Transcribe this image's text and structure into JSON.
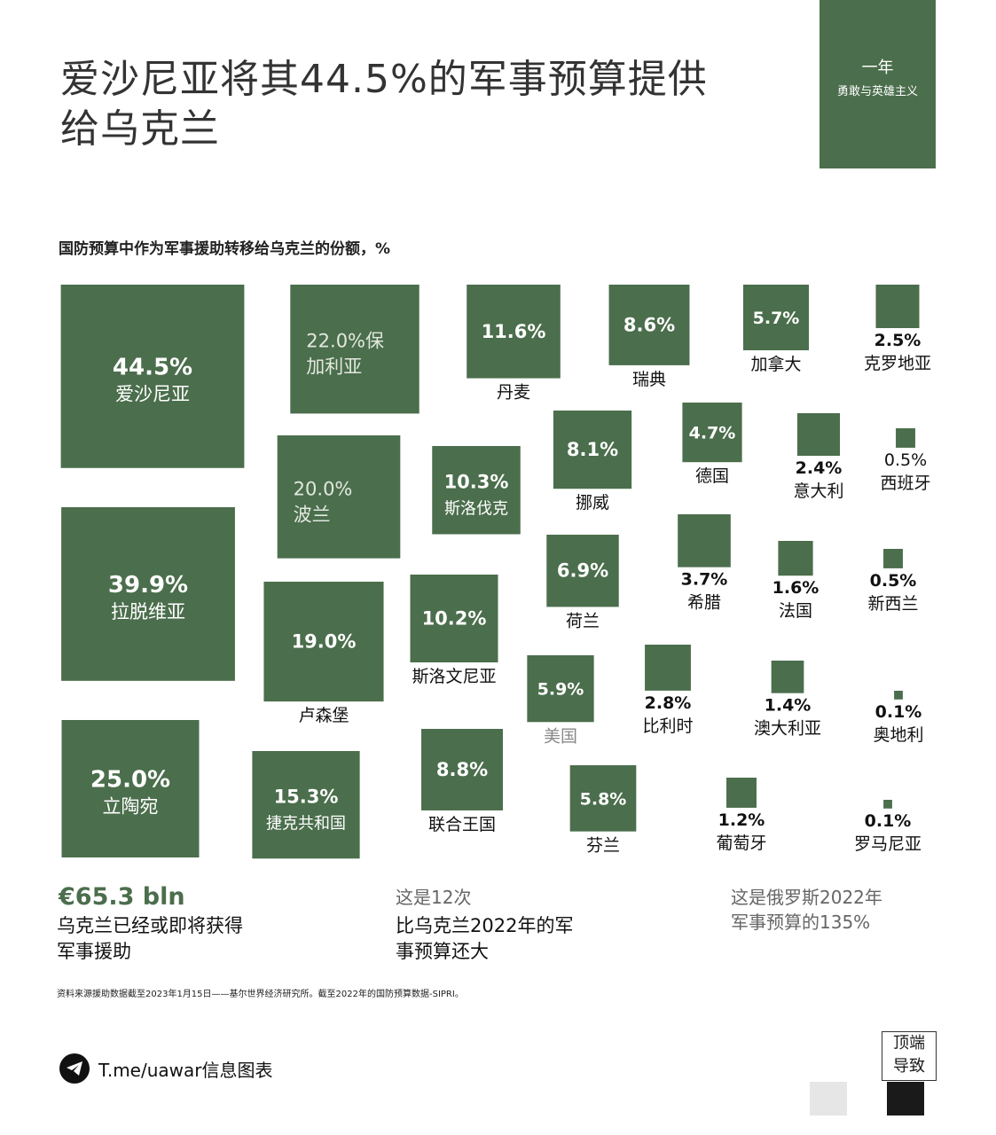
{
  "header": {
    "title": "爱沙尼亚将其44.5%的军事预算提供给乌克兰",
    "badge_line1": "一年",
    "badge_line2": "勇敢与英雄主义",
    "subtitle": "国防预算中作为军事援助转移给乌克兰的份额，%"
  },
  "chart_data": {
    "type": "proportional-squares",
    "title": "国防预算中作为军事援助转移给乌克兰的份额，%",
    "unit": "%",
    "items": [
      {
        "country": "爱沙尼亚",
        "value": 44.5,
        "label": "44.5%"
      },
      {
        "country": "保加利亚",
        "value": 22.0,
        "label": "22.0%"
      },
      {
        "country": "丹麦",
        "value": 11.6,
        "label": "11.6%"
      },
      {
        "country": "瑞典",
        "value": 8.6,
        "label": "8.6%"
      },
      {
        "country": "加拿大",
        "value": 5.7,
        "label": "5.7%"
      },
      {
        "country": "克罗地亚",
        "value": 2.5,
        "label": "2.5%"
      },
      {
        "country": "拉脱维亚",
        "value": 39.9,
        "label": "39.9%"
      },
      {
        "country": "波兰",
        "value": 20.0,
        "label": "20.0%"
      },
      {
        "country": "斯洛伐克",
        "value": 10.3,
        "label": "10.3%"
      },
      {
        "country": "挪威",
        "value": 8.1,
        "label": "8.1%"
      },
      {
        "country": "德国",
        "value": 4.7,
        "label": "4.7%"
      },
      {
        "country": "意大利",
        "value": 2.4,
        "label": "2.4%"
      },
      {
        "country": "西班牙",
        "value": 0.5,
        "label": "0.5%"
      },
      {
        "country": "卢森堡",
        "value": 19.0,
        "label": "19.0%"
      },
      {
        "country": "斯洛文尼亚",
        "value": 10.2,
        "label": "10.2%"
      },
      {
        "country": "荷兰",
        "value": 6.9,
        "label": "6.9%"
      },
      {
        "country": "希腊",
        "value": 3.7,
        "label": "3.7%"
      },
      {
        "country": "法国",
        "value": 1.6,
        "label": "1.6%"
      },
      {
        "country": "新西兰",
        "value": 0.5,
        "label": "0.5%"
      },
      {
        "country": "立陶宛",
        "value": 25.0,
        "label": "25.0%"
      },
      {
        "country": "捷克共和国",
        "value": 15.3,
        "label": "15.3%"
      },
      {
        "country": "联合王国",
        "value": 8.8,
        "label": "8.8%"
      },
      {
        "country": "美国",
        "value": 5.9,
        "label": "5.9%"
      },
      {
        "country": "比利时",
        "value": 2.8,
        "label": "2.8%"
      },
      {
        "country": "澳大利亚",
        "value": 1.4,
        "label": "1.4%"
      },
      {
        "country": "奥地利",
        "value": 0.1,
        "label": "0.1%"
      },
      {
        "country": "芬兰",
        "value": 5.8,
        "label": "5.8%"
      },
      {
        "country": "葡萄牙",
        "value": 1.2,
        "label": "1.2%"
      },
      {
        "country": "罗马尼亚",
        "value": 0.1,
        "label": "0.1%"
      }
    ],
    "colors": {
      "square": "#4b6e4c",
      "inside_label": "#ffffff",
      "inside_label_faded": "#e2e8df",
      "outside_label": "#111111"
    }
  },
  "stats": {
    "amount": "€65.3 bln",
    "amount_desc_1": "乌克兰已经或即将获得",
    "amount_desc_2": "军事援助",
    "times": "这是12次",
    "times_desc_1": "比乌克兰2022年的军",
    "times_desc_2": "事预算还大",
    "russia_1": "这是俄罗斯2022年",
    "russia_2": "军事预算的135%"
  },
  "source": "资料来源援助数据截至2023年1月15日——基尔世界经济研究所。截至2022年的国防预算数据-SIPRI。",
  "footer": {
    "telegram_text": "T.me/uawar信息图表",
    "top_button_1": "顶端",
    "top_button_2": "导致"
  }
}
